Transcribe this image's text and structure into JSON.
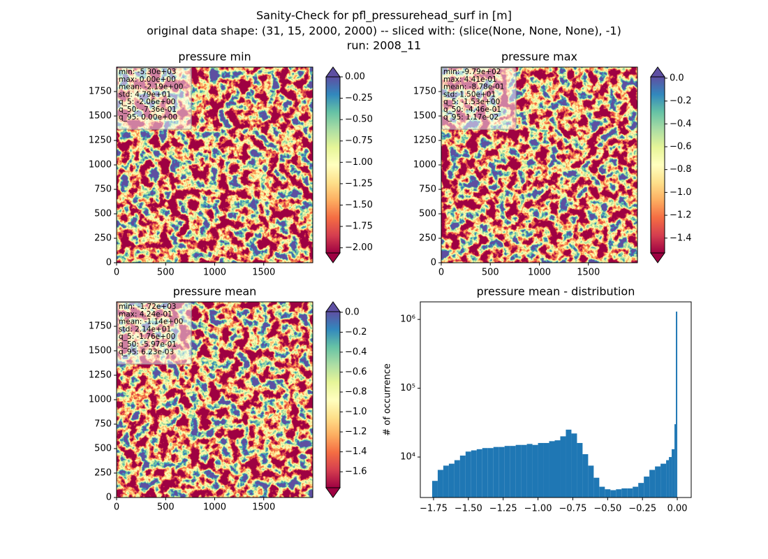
{
  "suptitle": [
    "Sanity-Check for pfl_pressurehead_surf in [m]",
    "original data shape: (31, 15, 2000, 2000) -- sliced with: (slice(None, None, None), -1)",
    "run: 2008_11"
  ],
  "chart_data": [
    {
      "type": "heatmap",
      "title": "pressure min",
      "xlim": [
        0,
        2000
      ],
      "ylim": [
        0,
        2000
      ],
      "xticks": [
        0,
        500,
        1000,
        1500
      ],
      "yticks": [
        0,
        250,
        500,
        750,
        1000,
        1250,
        1500,
        1750
      ],
      "colormap": "Spectral",
      "clim": [
        -2.06,
        0.0
      ],
      "extend": "both",
      "cbar_ticks": [
        {
          "value": 0,
          "label": "0.00"
        },
        {
          "value": -0.25,
          "label": "−0.25"
        },
        {
          "value": -0.5,
          "label": "−0.50"
        },
        {
          "value": -0.75,
          "label": "−0.75"
        },
        {
          "value": -1,
          "label": "−1.00"
        },
        {
          "value": -1.25,
          "label": "−1.25"
        },
        {
          "value": -1.5,
          "label": "−1.50"
        },
        {
          "value": -1.75,
          "label": "−1.75"
        },
        {
          "value": -2,
          "label": "−2.00"
        }
      ],
      "stats": [
        "min: -5.30e+03",
        "max: 0.00e+00",
        "mean: -2.19e+00",
        "std: 4.79e+01",
        "q_5: -2.06e+00",
        "q_50: -7.36e-01",
        "q_95: 0.00e+00"
      ]
    },
    {
      "type": "heatmap",
      "title": "pressure max",
      "xlim": [
        0,
        2000
      ],
      "ylim": [
        0,
        2000
      ],
      "xticks": [
        0,
        500,
        1000,
        1500
      ],
      "yticks": [
        0,
        250,
        500,
        750,
        1000,
        1250,
        1500,
        1750
      ],
      "colormap": "Spectral",
      "clim": [
        -1.53,
        0.0117
      ],
      "extend": "both",
      "cbar_ticks": [
        {
          "value": 0,
          "label": "0.0"
        },
        {
          "value": -0.2,
          "label": "−0.2"
        },
        {
          "value": -0.4,
          "label": "−0.4"
        },
        {
          "value": -0.6,
          "label": "−0.6"
        },
        {
          "value": -0.8,
          "label": "−0.8"
        },
        {
          "value": -1,
          "label": "−1.0"
        },
        {
          "value": -1.2,
          "label": "−1.2"
        },
        {
          "value": -1.4,
          "label": "−1.4"
        }
      ],
      "stats": [
        "min: -9.79e+02",
        "max: 4.41e-01",
        "mean: -8.78e-01",
        "std: 1.50e+01",
        "q_5: -1.53e+00",
        "q_50: -4.46e-01",
        "q_95: 1.17e-02"
      ]
    },
    {
      "type": "heatmap",
      "title": "pressure mean",
      "xlim": [
        0,
        2000
      ],
      "ylim": [
        0,
        2000
      ],
      "xticks": [
        0,
        500,
        1000,
        1500
      ],
      "yticks": [
        0,
        250,
        500,
        750,
        1000,
        1250,
        1500,
        1750
      ],
      "colormap": "Spectral",
      "clim": [
        -1.76,
        0.00623
      ],
      "extend": "both",
      "cbar_ticks": [
        {
          "value": 0,
          "label": "0.0"
        },
        {
          "value": -0.2,
          "label": "−0.2"
        },
        {
          "value": -0.4,
          "label": "−0.4"
        },
        {
          "value": -0.6,
          "label": "−0.6"
        },
        {
          "value": -0.8,
          "label": "−0.8"
        },
        {
          "value": -1,
          "label": "−1.0"
        },
        {
          "value": -1.2,
          "label": "−1.2"
        },
        {
          "value": -1.4,
          "label": "−1.4"
        },
        {
          "value": -1.6,
          "label": "−1.6"
        }
      ],
      "stats": [
        "min: -1.72e+03",
        "max: 4.24e-01",
        "mean: -1.14e+00",
        "std: 2.14e+01",
        "q_5: -1.76e+00",
        "q_50: -5.97e-01",
        "q_95: 6.23e-03"
      ]
    },
    {
      "type": "histogram",
      "title": "pressure mean - distribution",
      "ylabel": "# of occurrence",
      "color": "#1f77b4",
      "log_y": true,
      "xlim": [
        -1.845,
        0.1
      ],
      "ylim": [
        2580,
        1800000
      ],
      "xticks": [
        {
          "value": -1.75,
          "label": "−1.75"
        },
        {
          "value": -1.5,
          "label": "−1.50"
        },
        {
          "value": -1.25,
          "label": "−1.25"
        },
        {
          "value": -1,
          "label": "−1.00"
        },
        {
          "value": -0.75,
          "label": "−0.75"
        },
        {
          "value": -0.5,
          "label": "−0.50"
        },
        {
          "value": -0.25,
          "label": "−0.25"
        },
        {
          "value": 0,
          "label": "0.00"
        }
      ],
      "yticks": [
        {
          "value": 10000,
          "label": "10⁴"
        },
        {
          "value": 100000,
          "label": "10⁵"
        },
        {
          "value": 1000000,
          "label": "10⁶"
        }
      ],
      "bins": [
        -1.76,
        -1.72,
        -1.68,
        -1.64,
        -1.6,
        -1.56,
        -1.52,
        -1.48,
        -1.44,
        -1.4,
        -1.36,
        -1.32,
        -1.28,
        -1.24,
        -1.2,
        -1.16,
        -1.12,
        -1.08,
        -1.04,
        -1.0,
        -0.96,
        -0.92,
        -0.88,
        -0.84,
        -0.8,
        -0.76,
        -0.72,
        -0.68,
        -0.64,
        -0.6,
        -0.56,
        -0.52,
        -0.48,
        -0.44,
        -0.4,
        -0.36,
        -0.32,
        -0.28,
        -0.24,
        -0.2,
        -0.16,
        -0.12,
        -0.08,
        -0.06,
        -0.04,
        -0.02,
        -0.01,
        0.0
      ],
      "values": [
        4500,
        6500,
        7500,
        8000,
        9000,
        10500,
        12000,
        12500,
        13000,
        13500,
        13500,
        14000,
        14000,
        14500,
        14500,
        15000,
        15000,
        15500,
        15000,
        16000,
        16000,
        17000,
        17500,
        20000,
        25000,
        22000,
        16000,
        11000,
        7500,
        5000,
        3700,
        3400,
        3300,
        3400,
        3500,
        3500,
        3700,
        4200,
        5200,
        6500,
        7300,
        8000,
        9000,
        10000,
        13000,
        30000,
        1300000
      ]
    }
  ]
}
